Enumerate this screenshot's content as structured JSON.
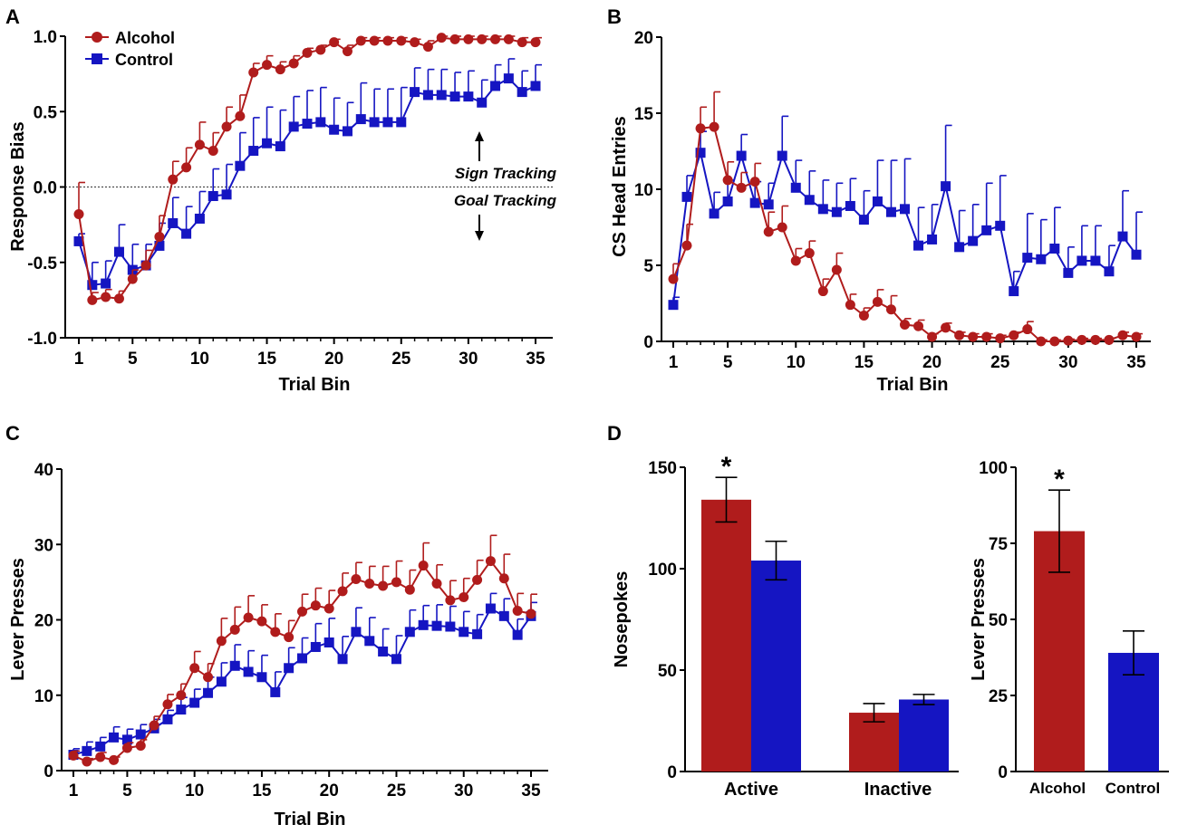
{
  "colors": {
    "alcohol": "#b01c1c",
    "control": "#1515c2",
    "axis": "#000000"
  },
  "chart_data": [
    {
      "panel": "A",
      "type": "line",
      "xlabel": "Trial Bin",
      "ylabel": "Response Bias",
      "xlim": [
        1,
        35
      ],
      "ylim": [
        -1.0,
        1.0
      ],
      "xticks": [
        1,
        5,
        10,
        15,
        20,
        25,
        30,
        35
      ],
      "yticks": [
        "-1.0",
        "-0.5",
        "0.0",
        "0.5",
        "1.0"
      ],
      "ytick_values": [
        -1.0,
        -0.5,
        0.0,
        0.5,
        1.0
      ],
      "legend": {
        "position": "top-left",
        "entries": [
          "Alcohol",
          "Control"
        ]
      },
      "reference_line": 0,
      "annotations": {
        "upper": "Sign Tracking",
        "lower": "Goal Tracking"
      },
      "series": [
        {
          "name": "Alcohol",
          "marker": "circle",
          "values": [
            -0.18,
            -0.75,
            -0.73,
            -0.74,
            -0.61,
            -0.52,
            -0.33,
            0.05,
            0.13,
            0.28,
            0.24,
            0.4,
            0.47,
            0.76,
            0.81,
            0.78,
            0.82,
            0.89,
            0.91,
            0.96,
            0.9,
            0.97,
            0.97,
            0.97,
            0.97,
            0.96,
            0.93,
            0.99,
            0.98,
            0.98,
            0.98,
            0.98,
            0.98,
            0.96,
            0.96
          ],
          "errors": [
            0.21,
            0.05,
            0.05,
            0.05,
            0.06,
            0.1,
            0.14,
            0.12,
            0.13,
            0.15,
            0.12,
            0.13,
            0.14,
            0.06,
            0.06,
            0.05,
            0.05,
            0.03,
            0.03,
            0.02,
            0.04,
            0.02,
            0.02,
            0.02,
            0.02,
            0.02,
            0.04,
            0.01,
            0.02,
            0.02,
            0.02,
            0.02,
            0.02,
            0.03,
            0.03
          ]
        },
        {
          "name": "Control",
          "marker": "square",
          "values": [
            -0.36,
            -0.65,
            -0.64,
            -0.43,
            -0.55,
            -0.52,
            -0.39,
            -0.24,
            -0.31,
            -0.21,
            -0.06,
            -0.05,
            0.14,
            0.24,
            0.29,
            0.27,
            0.4,
            0.42,
            0.43,
            0.38,
            0.37,
            0.45,
            0.43,
            0.43,
            0.43,
            0.63,
            0.61,
            0.61,
            0.6,
            0.6,
            0.56,
            0.67,
            0.72,
            0.63,
            0.67
          ],
          "errors": [
            0.05,
            0.15,
            0.15,
            0.18,
            0.17,
            0.14,
            0.15,
            0.17,
            0.18,
            0.18,
            0.18,
            0.2,
            0.22,
            0.22,
            0.24,
            0.24,
            0.2,
            0.22,
            0.23,
            0.21,
            0.19,
            0.24,
            0.22,
            0.22,
            0.23,
            0.16,
            0.17,
            0.17,
            0.16,
            0.17,
            0.15,
            0.14,
            0.13,
            0.14,
            0.14
          ]
        }
      ]
    },
    {
      "panel": "B",
      "type": "line",
      "xlabel": "Trial Bin",
      "ylabel": "CS Head Entries",
      "xlim": [
        1,
        35
      ],
      "ylim": [
        0,
        20
      ],
      "xticks": [
        1,
        5,
        10,
        15,
        20,
        25,
        30,
        35
      ],
      "yticks": [
        "0",
        "5",
        "10",
        "15",
        "20"
      ],
      "ytick_values": [
        0,
        5,
        10,
        15,
        20
      ],
      "series": [
        {
          "name": "Alcohol",
          "marker": "circle",
          "values": [
            4.1,
            6.3,
            14.0,
            14.1,
            10.6,
            10.1,
            10.5,
            7.2,
            7.5,
            5.3,
            5.8,
            3.3,
            4.7,
            2.4,
            1.7,
            2.6,
            2.1,
            1.1,
            1.0,
            0.3,
            0.9,
            0.4,
            0.3,
            0.3,
            0.2,
            0.4,
            0.8,
            0.0,
            0.0,
            0.05,
            0.1,
            0.1,
            0.1,
            0.4,
            0.3
          ],
          "errors": [
            1.0,
            1.4,
            1.4,
            2.3,
            1.2,
            1.0,
            1.2,
            1.3,
            1.4,
            0.8,
            0.8,
            0.8,
            1.1,
            0.7,
            0.5,
            0.8,
            0.9,
            0.4,
            0.4,
            0.2,
            0.3,
            0.2,
            0.2,
            0.2,
            0.2,
            0.2,
            0.5,
            0.1,
            0.1,
            0.1,
            0.1,
            0.1,
            0.1,
            0.2,
            0.2
          ]
        },
        {
          "name": "Control",
          "marker": "square",
          "values": [
            2.4,
            9.5,
            12.4,
            8.4,
            9.2,
            12.2,
            9.1,
            9.0,
            12.2,
            10.1,
            9.3,
            8.7,
            8.5,
            8.9,
            8.0,
            9.2,
            8.5,
            8.7,
            6.3,
            6.7,
            10.2,
            6.2,
            6.6,
            7.3,
            7.6,
            3.3,
            5.5,
            5.4,
            6.1,
            4.5,
            5.3,
            5.3,
            4.6,
            6.9,
            5.7
          ],
          "errors": [
            0.5,
            1.4,
            1.4,
            1.4,
            1.4,
            1.4,
            1.4,
            1.4,
            2.6,
            1.8,
            1.9,
            1.9,
            1.9,
            1.8,
            1.9,
            2.7,
            3.4,
            3.3,
            2.5,
            2.3,
            4.0,
            2.4,
            2.4,
            3.1,
            3.3,
            1.3,
            2.9,
            2.6,
            2.7,
            1.7,
            2.3,
            2.3,
            1.7,
            3.0,
            2.8
          ]
        }
      ]
    },
    {
      "panel": "C",
      "type": "line",
      "xlabel": "Trial Bin",
      "ylabel": "Lever Presses",
      "xlim": [
        1,
        35
      ],
      "ylim": [
        0,
        40
      ],
      "xticks": [
        1,
        5,
        10,
        15,
        20,
        25,
        30,
        35
      ],
      "yticks": [
        "0",
        "10",
        "20",
        "30",
        "40"
      ],
      "ytick_values": [
        0,
        10,
        20,
        30,
        40
      ],
      "series": [
        {
          "name": "Alcohol",
          "marker": "circle",
          "values": [
            2.0,
            1.2,
            1.8,
            1.4,
            3.0,
            3.3,
            6.0,
            8.8,
            10.0,
            13.6,
            12.4,
            17.2,
            18.7,
            20.3,
            19.8,
            18.4,
            17.7,
            21.1,
            21.9,
            21.5,
            23.8,
            25.4,
            24.8,
            24.5,
            25.0,
            24.0,
            27.2,
            24.8,
            22.6,
            23.0,
            25.3,
            27.8,
            25.5,
            21.2,
            20.8
          ],
          "errors": [
            0.6,
            0.4,
            0.6,
            0.4,
            0.7,
            0.8,
            1.2,
            1.3,
            1.5,
            2.2,
            1.8,
            3.0,
            3.0,
            2.9,
            2.2,
            2.4,
            2.2,
            2.3,
            2.3,
            2.4,
            2.4,
            2.2,
            2.3,
            2.6,
            2.8,
            2.6,
            3.0,
            2.5,
            2.6,
            2.5,
            2.6,
            3.4,
            3.2,
            2.3,
            2.6
          ]
        },
        {
          "name": "Control",
          "marker": "square",
          "values": [
            2.1,
            2.6,
            3.2,
            4.4,
            4.1,
            4.8,
            5.6,
            6.8,
            8.1,
            9.0,
            10.3,
            11.8,
            13.9,
            13.1,
            12.4,
            10.4,
            13.6,
            14.9,
            16.4,
            17.0,
            14.8,
            18.4,
            17.2,
            15.8,
            14.8,
            18.4,
            19.3,
            19.2,
            19.1,
            18.4,
            18.1,
            21.5,
            20.5,
            18.0,
            20.5
          ],
          "errors": [
            0.8,
            1.2,
            1.2,
            1.4,
            1.4,
            1.3,
            1.2,
            1.2,
            1.6,
            1.8,
            2.1,
            2.5,
            2.8,
            2.8,
            2.9,
            2.7,
            2.7,
            2.7,
            3.1,
            3.2,
            3.0,
            3.2,
            3.1,
            3.0,
            3.1,
            2.9,
            2.6,
            2.8,
            2.7,
            2.7,
            2.6,
            2.0,
            2.3,
            2.1,
            1.8
          ]
        }
      ]
    },
    {
      "panel": "D-left",
      "type": "bar",
      "ylabel": "Nosepokes",
      "categories": [
        "Active",
        "Inactive"
      ],
      "ylim": [
        0,
        150
      ],
      "yticks": [
        "0",
        "50",
        "100",
        "150"
      ],
      "ytick_values": [
        0,
        50,
        100,
        150
      ],
      "series": [
        {
          "name": "Alcohol",
          "values": [
            134,
            29
          ],
          "errors": [
            11,
            4.5
          ]
        },
        {
          "name": "Control",
          "values": [
            104,
            35.5
          ],
          "errors": [
            9.5,
            2.5
          ]
        }
      ],
      "significance": [
        "*",
        ""
      ]
    },
    {
      "panel": "D-right",
      "type": "bar",
      "ylabel": "Lever Presses",
      "categories": [
        "Alcohol",
        "Control"
      ],
      "ylim": [
        0,
        100
      ],
      "yticks": [
        "0",
        "25",
        "50",
        "75",
        "100"
      ],
      "ytick_values": [
        0,
        25,
        50,
        75,
        100
      ],
      "values": [
        79,
        39
      ],
      "errors": [
        13.5,
        7.2
      ],
      "significance": [
        "*",
        ""
      ]
    }
  ],
  "panel_labels": [
    "A",
    "B",
    "C",
    "D"
  ]
}
